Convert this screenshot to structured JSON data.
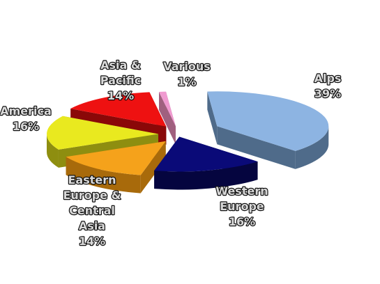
{
  "chart_data": {
    "type": "pie",
    "style": "3d-exploded",
    "legend": "none",
    "slices": [
      {
        "label": "Alps",
        "label_lines": [
          "Alps"
        ],
        "value": 39,
        "value_label": "39%",
        "color": "#8db4e2",
        "side_color": "#4f6b8a"
      },
      {
        "label": "Western Europe",
        "label_lines": [
          "Western",
          "Europe"
        ],
        "value": 16,
        "value_label": "16%",
        "color": "#0a0a78",
        "side_color": "#05053f"
      },
      {
        "label": "Eastern Europe & Central Asia",
        "label_lines": [
          "Eastern",
          "Europe &",
          "Central",
          "Asia"
        ],
        "value": 14,
        "value_label": "14%",
        "color": "#f5a21b",
        "side_color": "#a86a0b"
      },
      {
        "label": "America",
        "label_lines": [
          "America"
        ],
        "value": 16,
        "value_label": "16%",
        "color": "#e9e91f",
        "side_color": "#8e8e10"
      },
      {
        "label": "Asia & Pacific",
        "label_lines": [
          "Asia &",
          "Pacific"
        ],
        "value": 14,
        "value_label": "14%",
        "color": "#ee1111",
        "side_color": "#8a0808"
      },
      {
        "label": "Various",
        "label_lines": [
          "Various"
        ],
        "value": 1,
        "value_label": "1%",
        "color": "#f09ad0",
        "side_color": "#a0607f"
      }
    ]
  }
}
